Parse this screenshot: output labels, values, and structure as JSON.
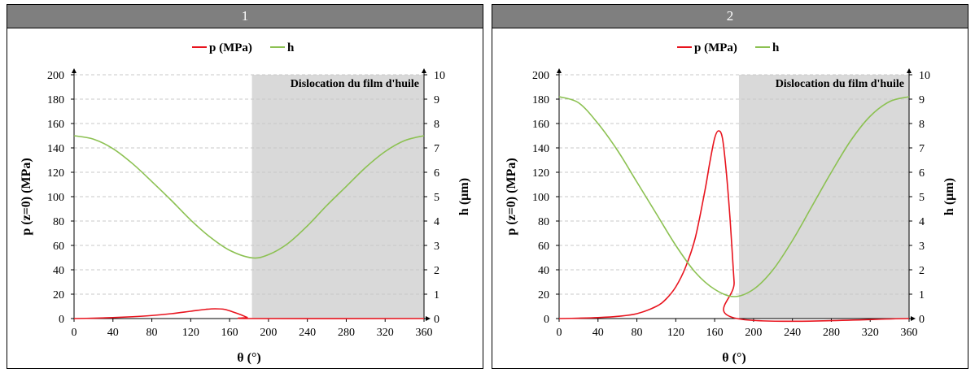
{
  "colors": {
    "pressure": "#e8141e",
    "thickness": "#8cc152",
    "shade": "#d9d9d9",
    "header": "#7f7f7f"
  },
  "panels": [
    {
      "label": "1"
    },
    {
      "label": "2"
    }
  ],
  "chart_data": [
    {
      "type": "line",
      "title": "",
      "xlabel": "θ (°)",
      "ylabel_left": "p (z=0) (MPa)",
      "ylabel_right": "h (µm)",
      "xlim": [
        0,
        360
      ],
      "ylim_left": [
        0,
        200
      ],
      "ylim_right": [
        0,
        10
      ],
      "xticks": [
        0,
        40,
        80,
        120,
        160,
        200,
        240,
        280,
        320,
        360
      ],
      "yticks_left": [
        0,
        20,
        40,
        60,
        80,
        100,
        120,
        140,
        160,
        180,
        200
      ],
      "yticks_right": [
        0,
        1,
        2,
        3,
        4,
        5,
        6,
        7,
        8,
        9,
        10
      ],
      "grid": true,
      "legend": "top-center",
      "legend_labels": [
        "p (MPa)",
        "h"
      ],
      "annotation": {
        "text": "Dislocation du film d'huile",
        "x_start": 183,
        "x_end": 360
      },
      "series": [
        {
          "name": "p (MPa)",
          "axis": "left",
          "x": [
            0,
            20,
            40,
            60,
            80,
            100,
            120,
            135,
            145,
            155,
            165,
            172,
            178,
            183,
            360
          ],
          "y": [
            0,
            0.3,
            0.8,
            1.5,
            2.5,
            4.0,
            6.0,
            7.5,
            8.0,
            7.5,
            5.0,
            3.0,
            1.0,
            0,
            0
          ]
        },
        {
          "name": "h",
          "axis": "right",
          "x": [
            0,
            20,
            40,
            60,
            80,
            100,
            120,
            140,
            160,
            183,
            200,
            220,
            240,
            260,
            280,
            300,
            320,
            340,
            360
          ],
          "y": [
            7.5,
            7.36,
            6.97,
            6.36,
            5.62,
            4.85,
            4.04,
            3.34,
            2.8,
            2.49,
            2.62,
            3.08,
            3.8,
            4.64,
            5.42,
            6.2,
            6.85,
            7.3,
            7.5
          ]
        }
      ]
    },
    {
      "type": "line",
      "title": "",
      "xlabel": "θ (°)",
      "ylabel_left": "p (z=0) (MPa)",
      "ylabel_right": "h (µm)",
      "xlim": [
        0,
        360
      ],
      "ylim_left": [
        0,
        200
      ],
      "ylim_right": [
        0,
        10
      ],
      "xticks": [
        0,
        40,
        80,
        120,
        160,
        200,
        240,
        280,
        320,
        360
      ],
      "yticks_left": [
        0,
        20,
        40,
        60,
        80,
        100,
        120,
        140,
        160,
        180,
        200
      ],
      "yticks_right": [
        0,
        1,
        2,
        3,
        4,
        5,
        6,
        7,
        8,
        9,
        10
      ],
      "grid": true,
      "legend": "top-center",
      "legend_labels": [
        "p (MPa)",
        "h"
      ],
      "annotation": {
        "text": "Dislocation du film d'huile",
        "x_start": 185,
        "x_end": 360
      },
      "series": [
        {
          "name": "p (MPa)",
          "axis": "left",
          "x": [
            0,
            20,
            40,
            60,
            80,
            100,
            110,
            120,
            130,
            140,
            150,
            155,
            160,
            164,
            168,
            172,
            176,
            180,
            183,
            360
          ],
          "y": [
            0,
            0.3,
            0.8,
            1.8,
            4,
            10,
            16,
            26,
            42,
            66,
            105,
            128,
            148,
            154,
            148,
            120,
            80,
            30,
            0,
            0
          ]
        },
        {
          "name": "h",
          "axis": "right",
          "x": [
            0,
            20,
            40,
            60,
            80,
            100,
            120,
            140,
            160,
            180,
            200,
            220,
            240,
            260,
            280,
            300,
            320,
            340,
            360
          ],
          "y": [
            9.1,
            8.85,
            8.0,
            6.9,
            5.6,
            4.3,
            3.0,
            1.9,
            1.2,
            0.9,
            1.2,
            2.0,
            3.2,
            4.6,
            6.0,
            7.3,
            8.3,
            8.9,
            9.1
          ]
        }
      ]
    }
  ]
}
